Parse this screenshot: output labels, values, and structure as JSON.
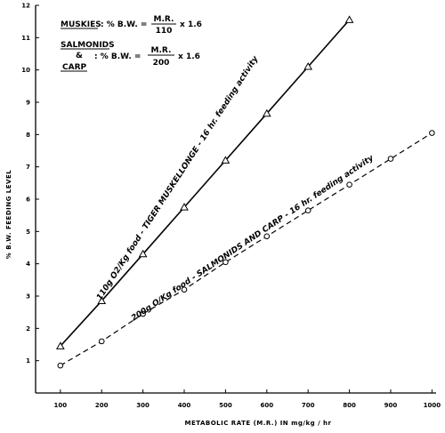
{
  "chart_data": {
    "type": "line",
    "xlabel": "METABOLIC RATE (M.R.) IN mg/kg / hr",
    "ylabel": "% B.W. FEEDING LEVEL",
    "xlim": [
      40,
      1010
    ],
    "ylim": [
      0,
      12
    ],
    "x_ticks": [
      "100",
      "200",
      "300",
      "400",
      "500",
      "600",
      "700",
      "800",
      "900",
      "1000"
    ],
    "y_ticks": [
      "1",
      "2",
      "3",
      "4",
      "5",
      "6",
      "7",
      "8",
      "9",
      "10",
      "11",
      "12"
    ],
    "grid": false,
    "series": [
      {
        "name": "110g O2/Kg food - TIGER MUSKELLONGE - 16 hr. feeding activity",
        "marker": "triangle",
        "line": "solid",
        "x": [
          100,
          200,
          300,
          400,
          500,
          600,
          700,
          800
        ],
        "y": [
          1.45,
          2.85,
          4.3,
          5.75,
          7.2,
          8.65,
          10.1,
          11.55
        ]
      },
      {
        "name": "200g O/Kg food - SALMONIDS AND CARP - 16 hr. feeding activity",
        "marker": "circle",
        "line": "dashed",
        "x": [
          100,
          200,
          300,
          400,
          500,
          600,
          700,
          800,
          900,
          1000
        ],
        "y": [
          0.85,
          1.6,
          2.45,
          3.2,
          4.05,
          4.85,
          5.65,
          6.45,
          7.25,
          8.05
        ]
      }
    ],
    "annotations": {
      "muskies": {
        "label": "MUSKIES",
        "lhs": ": % B.W. =",
        "numerator": "M.R.",
        "denominator": "110",
        "multiplier": "x 1.6"
      },
      "salmonids": {
        "label1": "SALMONIDS",
        "label2": "&",
        "label3": "CARP",
        "lhs": ": % B.W. =",
        "numerator": "M.R.",
        "denominator": "200",
        "multiplier": "x 1.6"
      }
    }
  }
}
